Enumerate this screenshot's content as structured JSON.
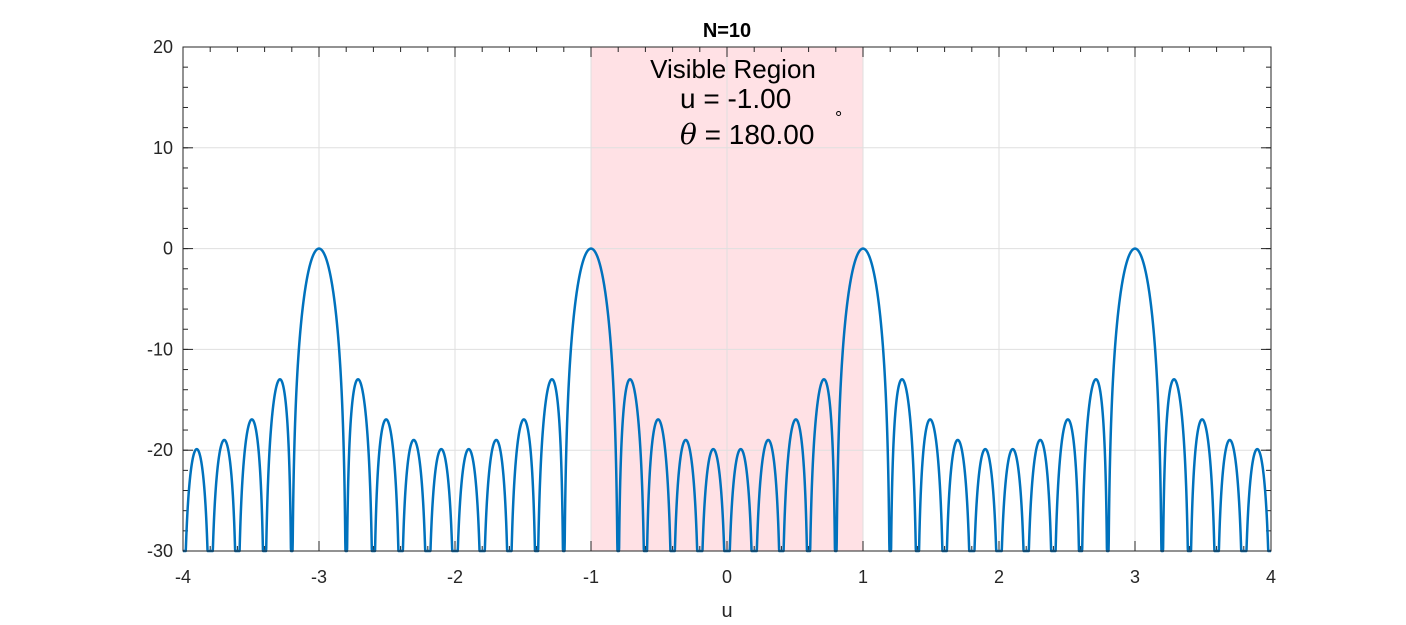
{
  "chart_data": {
    "type": "line",
    "title": "N=10",
    "xlabel": "u",
    "ylabel": "",
    "xlim": [
      -4,
      4
    ],
    "ylim": [
      -30,
      20
    ],
    "xticks": [
      "-4",
      "-3",
      "-2",
      "-1",
      "0",
      "1",
      "2",
      "3",
      "4"
    ],
    "yticks": [
      "20",
      "10",
      "0",
      "-10",
      "-20",
      "-30"
    ],
    "grid": true,
    "n_elements": 10,
    "steering_u": -1,
    "series": [
      {
        "description": "Normalized array factor 20*log10(|sin(N*pi*(u-u0)/2)/(N*sin(pi*(u-u0)/2))|), N=10, u0=-1",
        "color": "#0072BD"
      }
    ],
    "visible_region": {
      "x_range": [
        -1,
        1
      ],
      "fill": "#FFE1E5",
      "annotation": {
        "label": "Visible Region",
        "u_line": "u = -1.00",
        "theta_symbol": "θ",
        "theta_value": " = 180.00",
        "degree_symbol": "°"
      }
    }
  }
}
